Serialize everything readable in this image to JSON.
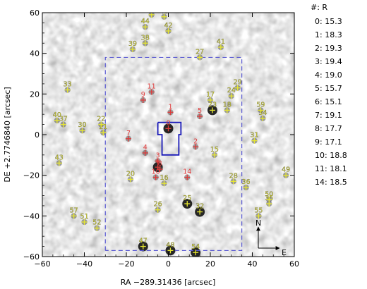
{
  "chart_data": {
    "type": "scatter",
    "xlabel": "RA −289.31436 [arcsec]",
    "ylabel": "DE +2.7746840 [arcsec]",
    "xlim": [
      -60,
      60
    ],
    "ylim": [
      -60,
      60
    ],
    "x_ticks": [
      "−60",
      "−40",
      "−20",
      "0",
      "20",
      "40",
      "60"
    ],
    "y_ticks": [
      "−60",
      "−40",
      "−20",
      "0",
      "20",
      "40",
      "60"
    ],
    "x_tick_values": [
      -60,
      -40,
      -20,
      0,
      20,
      40,
      60
    ],
    "y_tick_values": [
      -60,
      -40,
      -20,
      0,
      20,
      40,
      60
    ],
    "background": "grayscale sky image",
    "compass": {
      "north": "N",
      "east": "E"
    },
    "colors": {
      "field_frame": "#5a5ad2",
      "target_aperture": "#1a1ab8",
      "yellow_marks": "#e8e830",
      "red_marks": "#e03a3a"
    },
    "legend": {
      "header": "#:  R",
      "rows": [
        "0:  15.3",
        "1:  18.3",
        "2:  19.3",
        "3:  19.4",
        "4:  19.0",
        "5:  15.7",
        "6:  15.1",
        "7:  19.1",
        "8:  17.7",
        "9:  17.1",
        "10:  18.8",
        "11:  18.1",
        "14:  18.5"
      ]
    },
    "field_frame": {
      "x": [
        -30,
        35
      ],
      "y": [
        -57,
        38
      ]
    },
    "target_aperture": [
      [
        -5,
        6
      ],
      [
        6,
        6
      ],
      [
        6,
        0
      ],
      [
        5,
        0
      ],
      [
        5,
        -10
      ],
      [
        -3,
        -10
      ],
      [
        -3,
        0
      ],
      [
        -5,
        0
      ],
      [
        -5,
        6
      ]
    ],
    "red_sources": [
      {
        "label": "0",
        "x": 0,
        "y": 3
      },
      {
        "label": "1",
        "x": 1,
        "y": 11
      },
      {
        "label": "2",
        "x": 13,
        "y": -6
      },
      {
        "label": "3",
        "x": -5,
        "y": -13
      },
      {
        "label": "4",
        "x": -11,
        "y": -9
      },
      {
        "label": "5",
        "x": 15,
        "y": 9
      },
      {
        "label": "6",
        "x": -5,
        "y": -16
      },
      {
        "label": "7",
        "x": -19,
        "y": -2
      },
      {
        "label": "8",
        "x": -4,
        "y": -17
      },
      {
        "label": "9",
        "x": -12,
        "y": 17
      },
      {
        "label": "10",
        "x": -6,
        "y": -21
      },
      {
        "label": "11",
        "x": -8,
        "y": 21
      },
      {
        "label": "14",
        "x": 9,
        "y": -21
      }
    ],
    "yellow_sources": [
      {
        "label": "15",
        "x": 22,
        "y": -10
      },
      {
        "label": "16",
        "x": -2,
        "y": -24
      },
      {
        "label": "17",
        "x": 20,
        "y": 17
      },
      {
        "label": "18",
        "x": 28,
        "y": 12
      },
      {
        "label": "20",
        "x": -18,
        "y": -22
      },
      {
        "label": "21",
        "x": -31,
        "y": 1
      },
      {
        "label": "22",
        "x": -32,
        "y": 5
      },
      {
        "label": "23",
        "x": 21,
        "y": 12
      },
      {
        "label": "24",
        "x": 30,
        "y": 19
      },
      {
        "label": "25",
        "x": 9,
        "y": -34
      },
      {
        "label": "26",
        "x": -5,
        "y": -37
      },
      {
        "label": "27",
        "x": 15,
        "y": 38
      },
      {
        "label": "28",
        "x": 31,
        "y": -23
      },
      {
        "label": "29",
        "x": 33,
        "y": 23
      },
      {
        "label": "30",
        "x": -41,
        "y": 2
      },
      {
        "label": "31",
        "x": 41,
        "y": -3
      },
      {
        "label": "32",
        "x": 15,
        "y": -38
      },
      {
        "label": "33",
        "x": -48,
        "y": 22
      },
      {
        "label": "34",
        "x": 45,
        "y": 8
      },
      {
        "label": "35",
        "x": 48,
        "y": -34
      },
      {
        "label": "36",
        "x": 37,
        "y": -26
      },
      {
        "label": "37",
        "x": -50,
        "y": 5
      },
      {
        "label": "38",
        "x": -11,
        "y": 45
      },
      {
        "label": "39",
        "x": -17,
        "y": 42
      },
      {
        "label": "40",
        "x": -53,
        "y": 7
      },
      {
        "label": "41",
        "x": 25,
        "y": 43
      },
      {
        "label": "42",
        "x": 0,
        "y": 51
      },
      {
        "label": "43",
        "x": -52,
        "y": -14
      },
      {
        "label": "44",
        "x": -11,
        "y": 53
      },
      {
        "label": "45",
        "x": -2,
        "y": 58
      },
      {
        "label": "46",
        "x": -8,
        "y": 59
      },
      {
        "label": "47",
        "x": -12,
        "y": -55
      },
      {
        "label": "48",
        "x": 1,
        "y": -57
      },
      {
        "label": "49",
        "x": 56,
        "y": -20
      },
      {
        "label": "50",
        "x": 48,
        "y": -32
      },
      {
        "label": "51",
        "x": -40,
        "y": -43
      },
      {
        "label": "52",
        "x": -34,
        "y": -46
      },
      {
        "label": "54",
        "x": 13,
        "y": -58
      },
      {
        "label": "55",
        "x": 43,
        "y": -40
      },
      {
        "label": "57",
        "x": -45,
        "y": -40
      },
      {
        "label": "59",
        "x": 44,
        "y": 12
      }
    ]
  }
}
